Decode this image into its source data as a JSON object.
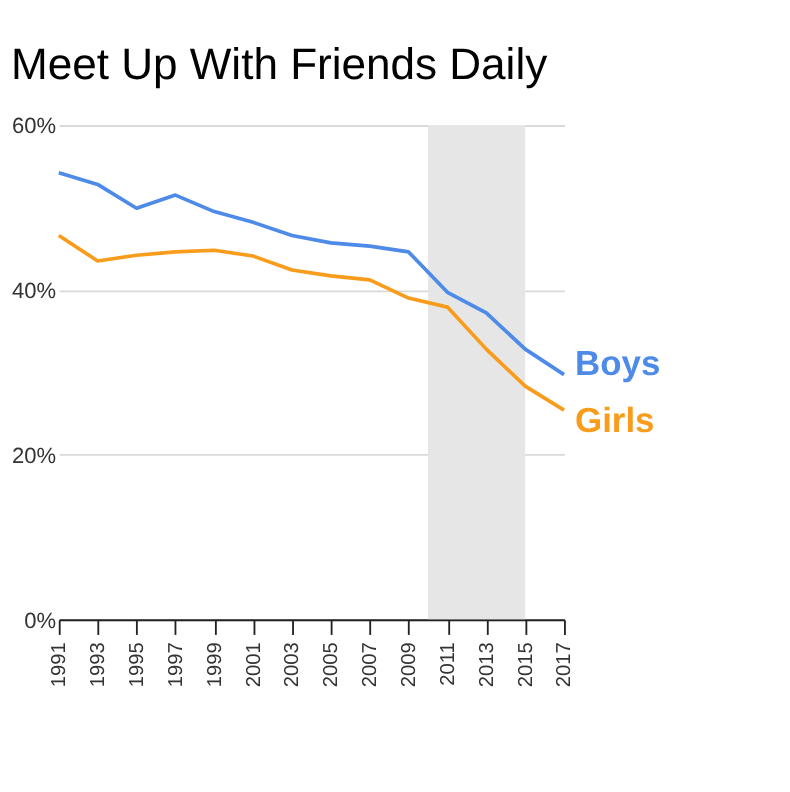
{
  "chart_data": {
    "type": "line",
    "title": "Meet Up With Friends Daily",
    "x": [
      1991,
      1993,
      1995,
      1997,
      1999,
      2001,
      2003,
      2005,
      2007,
      2009,
      2011,
      2013,
      2015,
      2017
    ],
    "series": [
      {
        "name": "Boys",
        "color": "#4e8ae8",
        "values": [
          54.2,
          52.8,
          49.9,
          51.5,
          49.5,
          48.2,
          46.6,
          45.7,
          45.3,
          44.6,
          39.7,
          37.2,
          32.8,
          29.7
        ]
      },
      {
        "name": "Girls",
        "color": "#f99c1c",
        "values": [
          46.6,
          43.5,
          44.2,
          44.6,
          44.8,
          44.1,
          42.4,
          41.7,
          41.2,
          39.0,
          37.9,
          32.8,
          28.3,
          25.4
        ]
      }
    ],
    "xlim": [
      1991,
      2017
    ],
    "xticks": [
      1991,
      1993,
      1995,
      1997,
      1999,
      2001,
      2003,
      2005,
      2007,
      2009,
      2011,
      2013,
      2015,
      2017
    ],
    "ylim": [
      0,
      60
    ],
    "yticks": [
      {
        "value": 0,
        "label": "0%"
      },
      {
        "value": 20,
        "label": "20%"
      },
      {
        "value": 40,
        "label": "40%"
      },
      {
        "value": 60,
        "label": "60%"
      }
    ],
    "bands": [
      {
        "axis": "x",
        "from": 2010,
        "to": 2015,
        "color": "#e6e6e6"
      }
    ],
    "grid": "y",
    "marker": "none",
    "line_style": "solid"
  }
}
